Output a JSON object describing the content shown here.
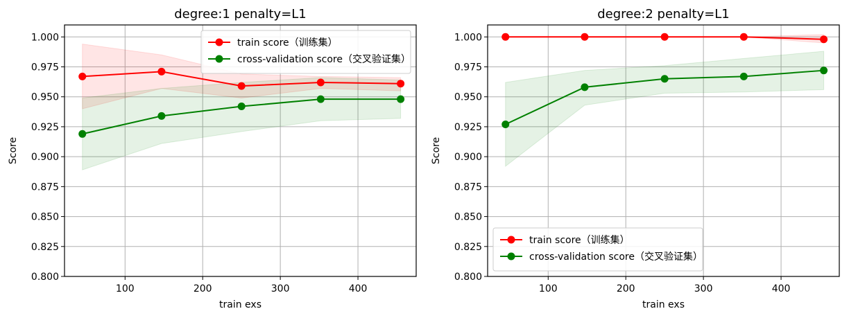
{
  "chart_data": [
    {
      "type": "line",
      "title": "degree:1 penalty=L1",
      "xlabel": "train exs",
      "ylabel": "Score",
      "xlim": [
        22,
        475
      ],
      "ylim": [
        0.8,
        1.01
      ],
      "xticks": [
        100,
        200,
        300,
        400
      ],
      "yticks": [
        0.8,
        0.825,
        0.85,
        0.875,
        0.9,
        0.925,
        0.95,
        0.975,
        1.0
      ],
      "xtick_labels": [
        "100",
        "200",
        "300",
        "400"
      ],
      "ytick_labels": [
        "0.800",
        "0.825",
        "0.850",
        "0.875",
        "0.900",
        "0.925",
        "0.950",
        "0.975",
        "1.000"
      ],
      "grid": true,
      "legend_position": "upper right",
      "x": [
        45,
        147,
        250,
        352,
        455
      ],
      "series": [
        {
          "name": "train score（训练集）",
          "color": "#ff0000",
          "values": [
            0.967,
            0.971,
            0.959,
            0.962,
            0.961
          ],
          "band_upper": [
            0.994,
            0.985,
            0.969,
            0.967,
            0.966
          ],
          "band_lower": [
            0.94,
            0.957,
            0.949,
            0.957,
            0.955
          ]
        },
        {
          "name": "cross-validation score（交叉验证集）",
          "color": "#008000",
          "values": [
            0.919,
            0.934,
            0.942,
            0.948,
            0.948
          ],
          "band_upper": [
            0.949,
            0.957,
            0.962,
            0.966,
            0.964
          ],
          "band_lower": [
            0.889,
            0.911,
            0.921,
            0.93,
            0.932
          ]
        }
      ]
    },
    {
      "type": "line",
      "title": "degree:2 penalty=L1",
      "xlabel": "train exs",
      "ylabel": "Score",
      "xlim": [
        22,
        475
      ],
      "ylim": [
        0.8,
        1.01
      ],
      "xticks": [
        100,
        200,
        300,
        400
      ],
      "yticks": [
        0.8,
        0.825,
        0.85,
        0.875,
        0.9,
        0.925,
        0.95,
        0.975,
        1.0
      ],
      "xtick_labels": [
        "100",
        "200",
        "300",
        "400"
      ],
      "ytick_labels": [
        "0.800",
        "0.825",
        "0.850",
        "0.875",
        "0.900",
        "0.925",
        "0.950",
        "0.975",
        "1.000"
      ],
      "grid": true,
      "legend_position": "lower left",
      "x": [
        45,
        147,
        250,
        352,
        455
      ],
      "series": [
        {
          "name": "train score（训练集）",
          "color": "#ff0000",
          "values": [
            1.0,
            1.0,
            1.0,
            1.0,
            0.998
          ],
          "band_upper": [
            1.0,
            1.0,
            1.0,
            1.0,
            1.002
          ],
          "band_lower": [
            1.0,
            1.0,
            1.0,
            1.0,
            0.995
          ]
        },
        {
          "name": "cross-validation score（交叉验证集）",
          "color": "#008000",
          "values": [
            0.927,
            0.958,
            0.965,
            0.967,
            0.972
          ],
          "band_upper": [
            0.962,
            0.972,
            0.976,
            0.982,
            0.988
          ],
          "band_lower": [
            0.892,
            0.943,
            0.953,
            0.954,
            0.956
          ]
        }
      ]
    }
  ]
}
